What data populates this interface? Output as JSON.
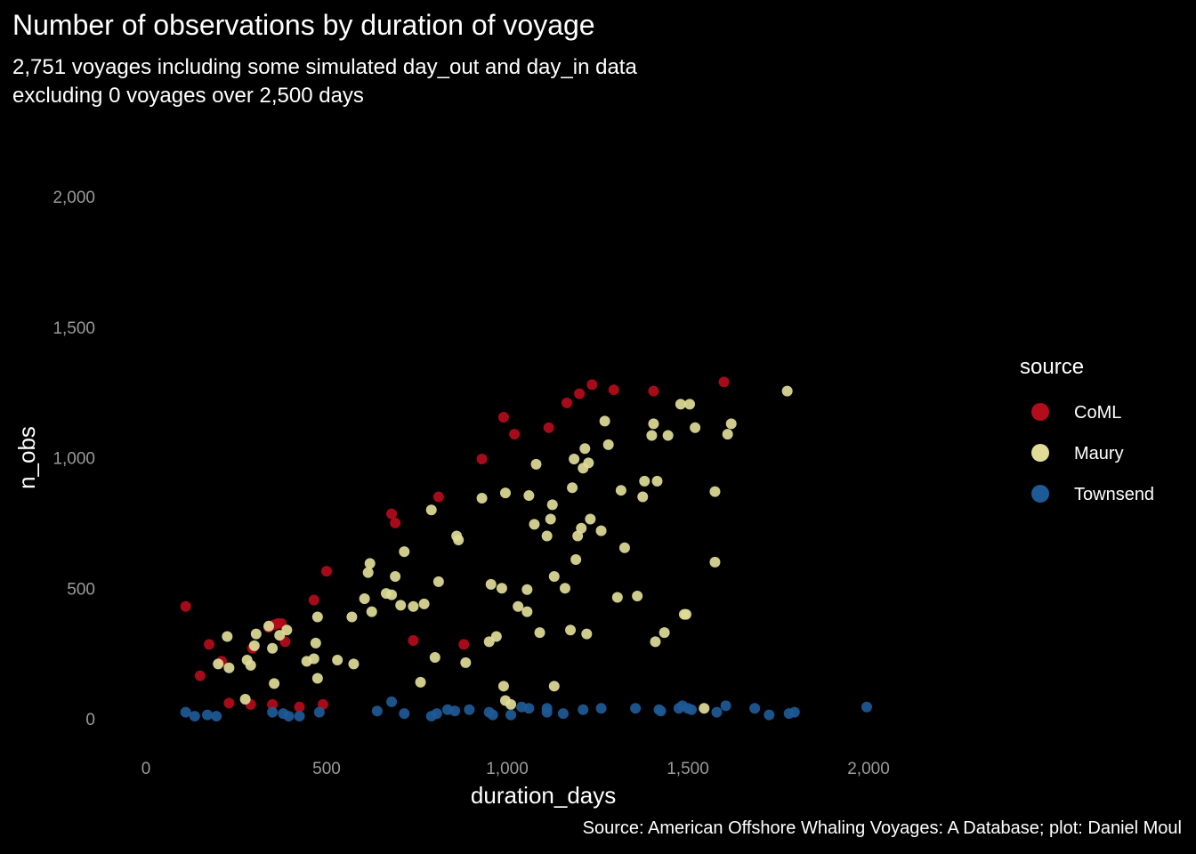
{
  "chart_data": {
    "type": "scatter",
    "title": "Number of observations by duration of voyage",
    "subtitle_lines": [
      "2,751 voyages including some simulated day_out and day_in data",
      "excluding 0 voyages over 2,500 days"
    ],
    "caption": "Source: American Offshore Whaling Voyages: A Database; plot: Daniel Moul",
    "xlabel": "duration_days",
    "ylabel": "n_obs",
    "xlim": [
      -50,
      2120
    ],
    "ylim": [
      -130,
      2100
    ],
    "x_ticks": [
      0,
      500,
      1000,
      1500,
      2000
    ],
    "x_tick_labels": [
      "0",
      "500",
      "1,000",
      "1,500",
      "2,000"
    ],
    "y_ticks": [
      0,
      500,
      1000,
      1500,
      2000
    ],
    "y_tick_labels": [
      "0",
      "500",
      "1,000",
      "1,500",
      "2,000"
    ],
    "grid": false,
    "legend": {
      "title": "source",
      "position": "right"
    },
    "series": [
      {
        "name": "CoML",
        "color": "#b30c1a",
        "points": [
          [
            110,
            430
          ],
          [
            150,
            165
          ],
          [
            175,
            285
          ],
          [
            210,
            220
          ],
          [
            230,
            60
          ],
          [
            290,
            55
          ],
          [
            295,
            270
          ],
          [
            340,
            350
          ],
          [
            350,
            55
          ],
          [
            355,
            360
          ],
          [
            365,
            365
          ],
          [
            375,
            365
          ],
          [
            385,
            295
          ],
          [
            425,
            45
          ],
          [
            465,
            455
          ],
          [
            490,
            55
          ],
          [
            500,
            565
          ],
          [
            680,
            785
          ],
          [
            690,
            750
          ],
          [
            740,
            300
          ],
          [
            810,
            850
          ],
          [
            880,
            285
          ],
          [
            930,
            995
          ],
          [
            990,
            1155
          ],
          [
            1020,
            1090
          ],
          [
            1115,
            1115
          ],
          [
            1165,
            1210
          ],
          [
            1200,
            1245
          ],
          [
            1235,
            1280
          ],
          [
            1295,
            1260
          ],
          [
            1405,
            1255
          ],
          [
            1600,
            1290
          ]
        ]
      },
      {
        "name": "Maury",
        "color": "#e0dc98",
        "points": [
          [
            200,
            210
          ],
          [
            225,
            315
          ],
          [
            230,
            195
          ],
          [
            275,
            75
          ],
          [
            280,
            225
          ],
          [
            290,
            205
          ],
          [
            300,
            280
          ],
          [
            305,
            325
          ],
          [
            340,
            355
          ],
          [
            350,
            270
          ],
          [
            355,
            135
          ],
          [
            370,
            320
          ],
          [
            390,
            340
          ],
          [
            445,
            220
          ],
          [
            465,
            230
          ],
          [
            470,
            290
          ],
          [
            475,
            390
          ],
          [
            475,
            155
          ],
          [
            530,
            225
          ],
          [
            570,
            390
          ],
          [
            575,
            210
          ],
          [
            605,
            460
          ],
          [
            615,
            560
          ],
          [
            620,
            595
          ],
          [
            625,
            410
          ],
          [
            665,
            480
          ],
          [
            680,
            475
          ],
          [
            690,
            545
          ],
          [
            705,
            435
          ],
          [
            715,
            640
          ],
          [
            740,
            430
          ],
          [
            760,
            140
          ],
          [
            770,
            440
          ],
          [
            790,
            800
          ],
          [
            800,
            235
          ],
          [
            810,
            525
          ],
          [
            860,
            700
          ],
          [
            865,
            685
          ],
          [
            885,
            215
          ],
          [
            930,
            845
          ],
          [
            950,
            295
          ],
          [
            955,
            515
          ],
          [
            970,
            315
          ],
          [
            985,
            500
          ],
          [
            990,
            125
          ],
          [
            995,
            70
          ],
          [
            995,
            865
          ],
          [
            1010,
            55
          ],
          [
            1030,
            430
          ],
          [
            1055,
            495
          ],
          [
            1055,
            410
          ],
          [
            1060,
            855
          ],
          [
            1075,
            745
          ],
          [
            1080,
            975
          ],
          [
            1090,
            330
          ],
          [
            1110,
            700
          ],
          [
            1120,
            765
          ],
          [
            1125,
            820
          ],
          [
            1130,
            545
          ],
          [
            1130,
            125
          ],
          [
            1160,
            500
          ],
          [
            1175,
            340
          ],
          [
            1180,
            885
          ],
          [
            1185,
            995
          ],
          [
            1190,
            610
          ],
          [
            1195,
            700
          ],
          [
            1205,
            730
          ],
          [
            1210,
            960
          ],
          [
            1215,
            1035
          ],
          [
            1220,
            325
          ],
          [
            1225,
            980
          ],
          [
            1230,
            765
          ],
          [
            1260,
            720
          ],
          [
            1270,
            1140
          ],
          [
            1280,
            1050
          ],
          [
            1305,
            465
          ],
          [
            1315,
            875
          ],
          [
            1325,
            655
          ],
          [
            1360,
            470
          ],
          [
            1375,
            850
          ],
          [
            1380,
            910
          ],
          [
            1400,
            1085
          ],
          [
            1405,
            1130
          ],
          [
            1410,
            295
          ],
          [
            1415,
            910
          ],
          [
            1435,
            330
          ],
          [
            1445,
            1085
          ],
          [
            1480,
            1205
          ],
          [
            1490,
            400
          ],
          [
            1495,
            400
          ],
          [
            1505,
            1205
          ],
          [
            1520,
            1115
          ],
          [
            1545,
            40
          ],
          [
            1575,
            870
          ],
          [
            1575,
            600
          ],
          [
            1610,
            1090
          ],
          [
            1620,
            1130
          ],
          [
            1775,
            1255
          ]
        ]
      },
      {
        "name": "Townsend",
        "color": "#1e5a96",
        "points": [
          [
            110,
            25
          ],
          [
            135,
            10
          ],
          [
            170,
            15
          ],
          [
            195,
            10
          ],
          [
            350,
            25
          ],
          [
            380,
            20
          ],
          [
            395,
            10
          ],
          [
            425,
            10
          ],
          [
            480,
            25
          ],
          [
            640,
            30
          ],
          [
            680,
            65
          ],
          [
            715,
            20
          ],
          [
            790,
            10
          ],
          [
            805,
            20
          ],
          [
            835,
            35
          ],
          [
            855,
            30
          ],
          [
            895,
            35
          ],
          [
            950,
            25
          ],
          [
            960,
            15
          ],
          [
            1010,
            15
          ],
          [
            1040,
            45
          ],
          [
            1060,
            40
          ],
          [
            1110,
            40
          ],
          [
            1110,
            25
          ],
          [
            1155,
            20
          ],
          [
            1210,
            35
          ],
          [
            1260,
            40
          ],
          [
            1355,
            40
          ],
          [
            1420,
            35
          ],
          [
            1425,
            30
          ],
          [
            1475,
            40
          ],
          [
            1485,
            50
          ],
          [
            1500,
            40
          ],
          [
            1510,
            35
          ],
          [
            1580,
            25
          ],
          [
            1605,
            50
          ],
          [
            1685,
            40
          ],
          [
            1725,
            15
          ],
          [
            1780,
            20
          ],
          [
            1795,
            25
          ],
          [
            1995,
            45
          ]
        ]
      }
    ]
  }
}
